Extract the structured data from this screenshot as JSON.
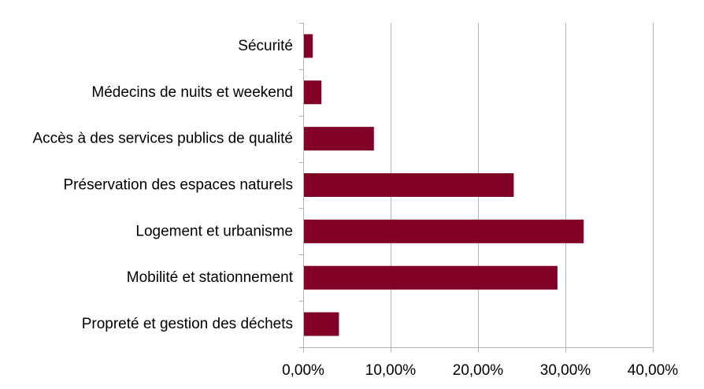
{
  "chart_data": {
    "type": "bar",
    "orientation": "horizontal",
    "categories": [
      "Sécurité",
      "Médecins de nuits et weekend",
      "Accès à des services publics de qualité",
      "Préservation des espaces naturels",
      "Logement et urbanisme",
      "Mobilité et stationnement",
      "Propreté et gestion des déchets"
    ],
    "values": [
      1,
      2,
      8,
      24,
      32,
      29,
      4
    ],
    "x_ticks": [
      0,
      10,
      20,
      30,
      40
    ],
    "x_tick_labels": [
      "0,00%",
      "10,00%",
      "20,00%",
      "30,00%",
      "40,00%"
    ],
    "xlim": [
      0,
      40
    ],
    "grid": "vertical",
    "bar_color": "#800026",
    "gridline_color": "#b3b3b3",
    "axis_color": "#b3b3b3"
  }
}
